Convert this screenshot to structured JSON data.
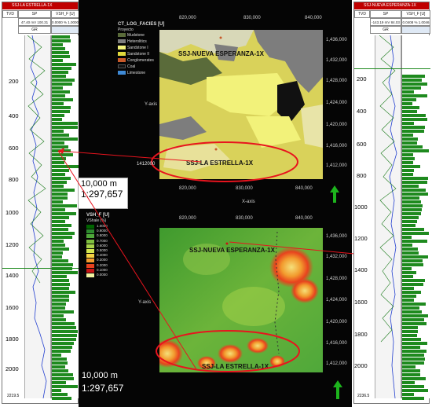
{
  "left_well": {
    "title": "SSJ-LA ESTRELLA-1X",
    "col_tvd": "TVD",
    "col_sp": "SP",
    "col_vsh": "VSH_F [U]",
    "sp_range": "47.40   mV  100.31",
    "vsh_range": "0.0000  %  1.0000",
    "col_gr": "GR",
    "depths": [
      "200",
      "400",
      "600",
      "800",
      "1000",
      "1200",
      "1400",
      "1600",
      "1800",
      "2000"
    ],
    "bottom_value": "2219.5"
  },
  "right_well": {
    "title": "SSJ-NUEVA ESPERANZA-1X",
    "col_tvd": "TVD",
    "col_sp": "SP",
    "col_vsh": "VSH_F [U]",
    "sp_range": "-143.19  mV  84.03",
    "vsh_range": "0.0408  %  1.0046",
    "col_gr": "GR",
    "depths": [
      "200",
      "400",
      "600",
      "800",
      "1000",
      "1200",
      "1400",
      "1600",
      "1800",
      "2000"
    ],
    "bottom_value": "2236.5"
  },
  "top_map": {
    "title": "CT_LOG_FACIES [U]",
    "subtitle": "Proyecto",
    "legend": [
      {
        "label": "Mudstone",
        "color": "#5a6b3a"
      },
      {
        "label": "Heterolitics",
        "color": "#7d7d7d"
      },
      {
        "label": "Sandstone I",
        "color": "#f2f27a"
      },
      {
        "label": "Sandstone II",
        "color": "#e0d93c"
      },
      {
        "label": "Conglomerates",
        "color": "#c85a2a"
      },
      {
        "label": "Coal",
        "color": "#111111"
      },
      {
        "label": "Limestone",
        "color": "#3f8ad6"
      }
    ],
    "x_ticks": [
      "820,000",
      "830,000",
      "840,000"
    ],
    "y_ticks": [
      "1,436,000",
      "1,432,000",
      "1,428,000",
      "1,424,000",
      "1,420,000",
      "1,416,000",
      "1,412,000"
    ],
    "x_axis": "X-axis",
    "y_axis": "Y-axis",
    "well_north": "SSJ-NUEVA ESPERANZA-1X",
    "well_south": "SSJ-LA ESTRELLA-1X",
    "left_y_label": "1412000",
    "scale_distance": "10,000 m",
    "scale_ratio": "1:297,657"
  },
  "bottom_map": {
    "title": "VSH_F [U]",
    "subtitle": "VShale (%)",
    "legend": [
      {
        "label": "1.0000",
        "color": "#006400"
      },
      {
        "label": "0.9000",
        "color": "#2e8b2e"
      },
      {
        "label": "0.8000",
        "color": "#4fa83a"
      },
      {
        "label": "0.7000",
        "color": "#7fbf3f"
      },
      {
        "label": "0.6000",
        "color": "#a8d44a"
      },
      {
        "label": "0.5000",
        "color": "#d4e64f"
      },
      {
        "label": "0.4000",
        "color": "#f5d142"
      },
      {
        "label": "0.3000",
        "color": "#f29b2e"
      },
      {
        "label": "0.2000",
        "color": "#e8421e"
      },
      {
        "label": "0.1000",
        "color": "#c81515"
      },
      {
        "label": "0.0000",
        "color": "#f2f2a0"
      }
    ],
    "x_ticks": [
      "820,000",
      "830,000",
      "840,000"
    ],
    "y_ticks": [
      "1,436,000",
      "1,432,000",
      "1,428,000",
      "1,424,000",
      "1,420,000",
      "1,416,000",
      "1,412,000"
    ],
    "y_axis": "Y-axis",
    "well_north": "SSJ-NUEVA ESPERANZA-1X",
    "well_south": "SSJ-LA ESTRELLA-1X",
    "scale_distance": "10,000 m",
    "scale_ratio": "1:297,657"
  },
  "colors": {
    "well_header": "#c00000",
    "track_green": "#1e8a1e",
    "ellipse": "#e8141e",
    "north_arrow": "#1db41d",
    "sp_curve": "#2340d0"
  }
}
